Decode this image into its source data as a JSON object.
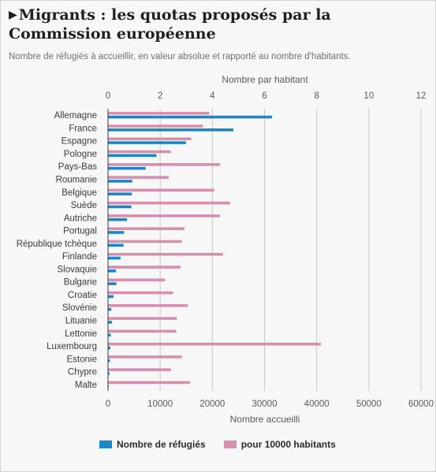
{
  "header": {
    "title": "Migrants : les quotas proposés par la Commission européenne",
    "subtitle": "Nombre de réfugiés à accueillir, en valeur absolue et rapporté au nombre d'habitants."
  },
  "colors": {
    "refugees": "#1a87c9",
    "per_capita": "#d690ad",
    "grid": "#c8c8c8",
    "baseline": "#3a3a3a"
  },
  "chart_data": {
    "type": "bar",
    "orientation": "horizontal",
    "categories": [
      "Allemagne",
      "France",
      "Espagne",
      "Pologne",
      "Pays-Bas",
      "Roumanie",
      "Belgique",
      "Suède",
      "Autriche",
      "Portugal",
      "République tchèque",
      "Finlande",
      "Slovaquie",
      "Bulgarie",
      "Croatie",
      "Slovénie",
      "Lituanie",
      "Lettonie",
      "Luxembourg",
      "Estonie",
      "Chypre",
      "Malte"
    ],
    "series": [
      {
        "name": "Nombre de réfugiés",
        "axis": "bottom",
        "values": [
          31443,
          24031,
          14931,
          9287,
          7214,
          4646,
          4564,
          4469,
          3640,
          3074,
          2978,
          2398,
          1502,
          1600,
          1064,
          631,
          780,
          526,
          440,
          373,
          274,
          133
        ]
      },
      {
        "name": "pour 10000 habitants",
        "axis": "top",
        "values": [
          3.88,
          3.64,
          3.19,
          2.41,
          4.3,
          2.33,
          4.07,
          4.68,
          4.29,
          2.93,
          2.83,
          4.41,
          2.78,
          2.19,
          2.49,
          3.06,
          2.64,
          2.62,
          8.16,
          2.83,
          2.41,
          3.15
        ]
      }
    ],
    "x_bottom": {
      "label": "Nombre accueilli",
      "range": [
        0,
        60000
      ],
      "ticks": [
        "0",
        "10000",
        "20000",
        "30000",
        "40000",
        "50000",
        "60000"
      ]
    },
    "x_top": {
      "label": "Nombre par habitant",
      "range": [
        0,
        12
      ],
      "ticks": [
        "0",
        "2",
        "4",
        "6",
        "8",
        "10",
        "12"
      ]
    },
    "grid": true,
    "legend_position": "bottom"
  }
}
